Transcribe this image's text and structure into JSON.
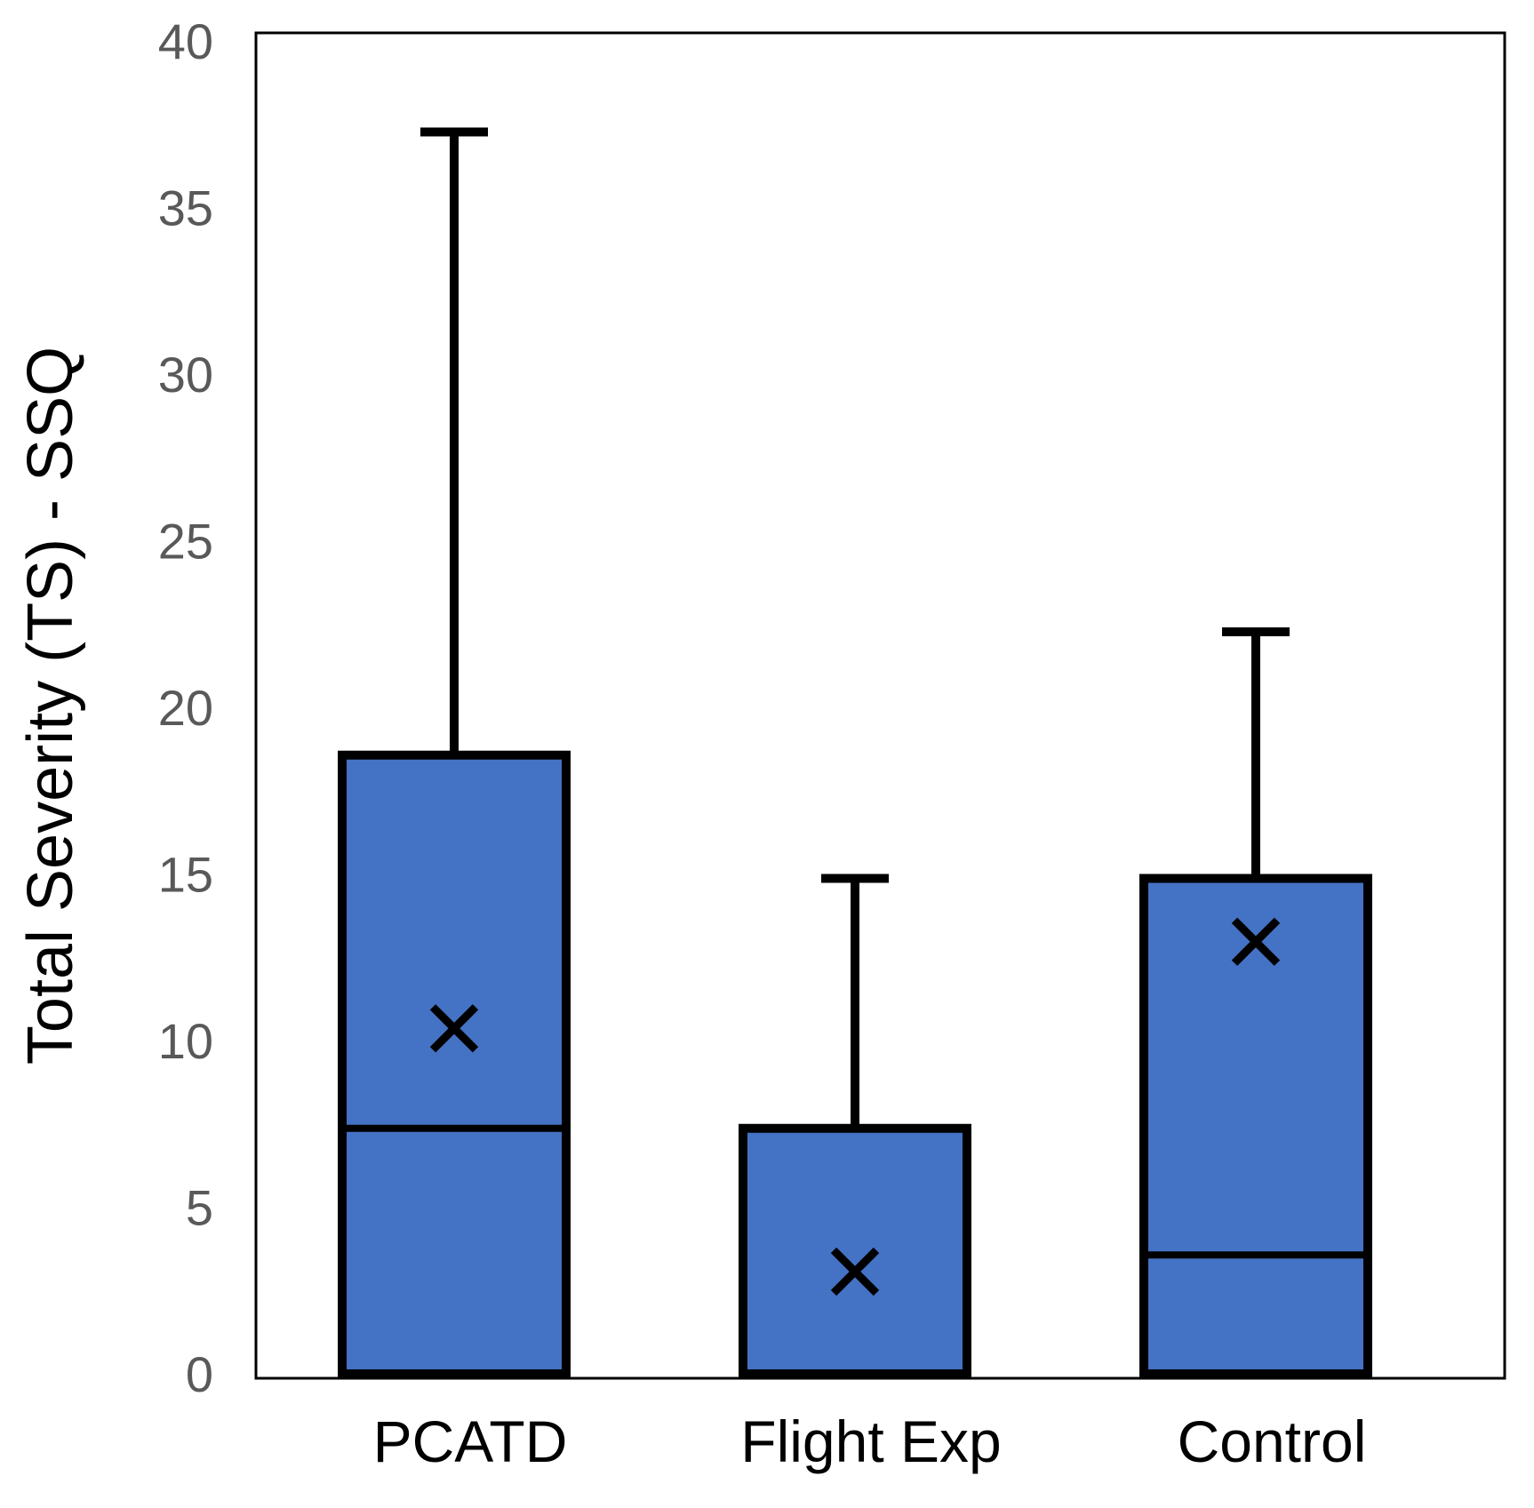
{
  "chart_data": {
    "type": "boxplot",
    "title": "",
    "xlabel": "",
    "ylabel": "Total Severity (TS) - SSQ",
    "ylim": [
      0,
      40
    ],
    "y_ticks": [
      "0",
      "5",
      "10",
      "15",
      "20",
      "25",
      "30",
      "35",
      "40"
    ],
    "categories": [
      "PCATD",
      "Flight Exp",
      "Control"
    ],
    "boxes": [
      {
        "category": "PCATD",
        "min": 0,
        "q1": 0,
        "median": 7.5,
        "q3": 18.7,
        "max": 37.4,
        "mean": 10.5
      },
      {
        "category": "Flight Exp",
        "min": 0,
        "q1": 0,
        "median": 0,
        "q3": 7.5,
        "max": 15.0,
        "mean": 3.2
      },
      {
        "category": "Control",
        "min": 0,
        "q1": 0,
        "median": 3.7,
        "q3": 15.0,
        "max": 22.4,
        "mean": 13.1
      }
    ],
    "grid": false,
    "legend": "none",
    "colors": {
      "box_fill": "#4472C4",
      "stroke": "#000000",
      "tick_text": "#595959",
      "frame": "#000000"
    }
  }
}
